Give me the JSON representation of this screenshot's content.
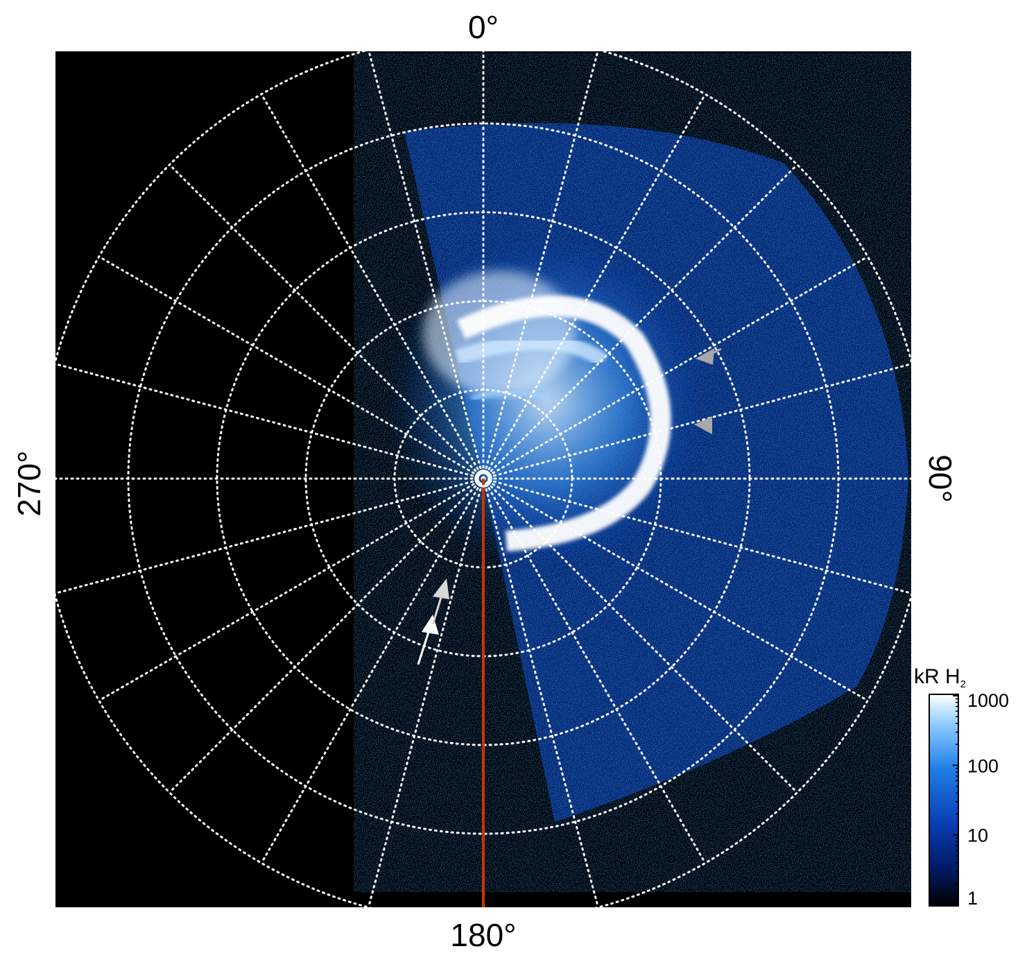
{
  "chart_data": {
    "type": "heatmap",
    "projection": "polar",
    "title": "",
    "angle_labels": {
      "top": "0°",
      "right": "90°",
      "bottom": "180°",
      "left": "270°"
    },
    "grid": true,
    "radial_rings": 5,
    "angular_spokes_deg": 15,
    "colorbar": {
      "title_main": "kR H",
      "title_sub": "2",
      "scale": "log",
      "range": [
        1,
        1000
      ],
      "ticks": [
        {
          "value": 1,
          "label": "1"
        },
        {
          "value": 10,
          "label": "10"
        },
        {
          "value": 100,
          "label": "100"
        },
        {
          "value": 1000,
          "label": "1000"
        }
      ],
      "colors": [
        "#000000",
        "#001a66",
        "#0a3fb8",
        "#1f7fe6",
        "#8ac8ff",
        "#ffffff"
      ]
    },
    "colors": {
      "background": "#000000",
      "grid": "#ffffff",
      "meridian_line": "#cc3300",
      "arrow_white": "#ffffff",
      "arrow_gray": "#a8a8a8"
    },
    "annotations": [
      {
        "kind": "reference-line",
        "angle_deg": 180
      },
      {
        "kind": "arrow",
        "color": "white"
      },
      {
        "kind": "arrow",
        "color": "light-gray"
      },
      {
        "kind": "arrow",
        "color": "gray"
      },
      {
        "kind": "arrow",
        "color": "gray"
      }
    ]
  }
}
